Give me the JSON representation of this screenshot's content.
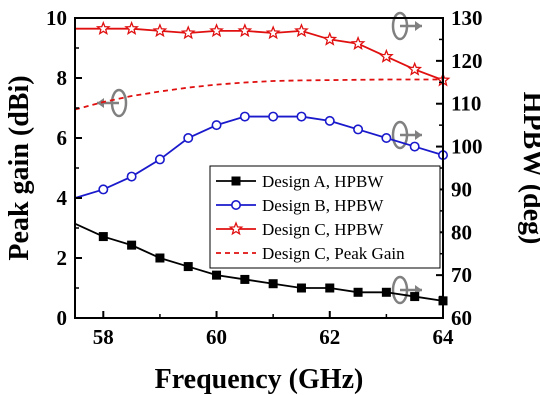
{
  "chart_data": {
    "type": "line",
    "xlabel": "Frequency (GHz)",
    "ylabel_left": "Peak gain (dBi)",
    "ylabel_right": "HPBW (deg)",
    "xlim": [
      57.5,
      64
    ],
    "ylim_left": [
      0,
      10
    ],
    "ylim_right": [
      60,
      130
    ],
    "x_ticks": [
      58,
      60,
      62,
      64
    ],
    "x_tick_labels": [
      "58",
      "60",
      "62",
      "64"
    ],
    "y_left_ticks": [
      0,
      2,
      4,
      6,
      8,
      10
    ],
    "y_left_tick_labels": [
      "0",
      "2",
      "4",
      "6",
      "8",
      "10"
    ],
    "y_right_ticks": [
      60,
      70,
      80,
      90,
      100,
      110,
      120,
      130
    ],
    "y_right_tick_labels": [
      "60",
      "70",
      "80",
      "90",
      "100",
      "110",
      "120",
      "130"
    ],
    "legend_position": "right",
    "grid": false,
    "series": [
      {
        "name": "Design A, HPBW",
        "axis": "right",
        "color": "#000000",
        "marker": "square",
        "line": "solid",
        "x": [
          57.5,
          58,
          58.5,
          59,
          59.5,
          60,
          60.5,
          61,
          61.5,
          62,
          62.5,
          63,
          63.5,
          64
        ],
        "y": [
          82,
          79,
          77,
          74,
          72,
          70,
          69,
          68,
          67,
          67,
          66,
          66,
          65,
          64
        ]
      },
      {
        "name": "Design B, HPBW",
        "axis": "right",
        "color": "#1a1acc",
        "marker": "circle",
        "line": "solid",
        "x": [
          57.5,
          58,
          58.5,
          59,
          59.5,
          60,
          60.5,
          61,
          61.5,
          62,
          62.5,
          63,
          63.5,
          64
        ],
        "y": [
          88,
          90,
          93,
          97,
          102,
          105,
          107,
          107,
          107,
          106,
          104,
          102,
          100,
          98
        ]
      },
      {
        "name": "Design C, HPBW",
        "axis": "right",
        "color": "#e01010",
        "marker": "star",
        "line": "solid",
        "x": [
          57.5,
          58,
          58.5,
          59,
          59.5,
          60,
          60.5,
          61,
          61.5,
          62,
          62.5,
          63,
          63.5,
          64
        ],
        "y": [
          127.5,
          127.5,
          127.5,
          127,
          126.5,
          127,
          127,
          126.5,
          127,
          125,
          124,
          121,
          118,
          115.5
        ]
      },
      {
        "name": "Design C, Peak Gain",
        "axis": "left",
        "color": "#e01010",
        "marker": "none",
        "line": "dashed",
        "x": [
          57.5,
          58,
          58.5,
          59,
          59.5,
          60,
          60.5,
          61,
          61.5,
          62,
          62.5,
          63,
          63.5,
          64
        ],
        "y": [
          6.95,
          7.2,
          7.4,
          7.55,
          7.68,
          7.78,
          7.85,
          7.9,
          7.92,
          7.93,
          7.94,
          7.95,
          7.95,
          7.95
        ]
      }
    ]
  },
  "colors": {
    "axis": "#000000",
    "annotation": "#808080"
  },
  "annotations": [
    {
      "type": "axis-pointer-icon",
      "direction": "left",
      "target_axis": "left"
    },
    {
      "type": "axis-pointer-icon",
      "direction": "right",
      "target_axis": "right"
    },
    {
      "type": "axis-pointer-icon",
      "direction": "right",
      "target_axis": "right"
    },
    {
      "type": "axis-pointer-icon",
      "direction": "right",
      "target_axis": "right"
    },
    {
      "type": "axis-pointer-icon",
      "direction": "right",
      "target_axis": "right"
    },
    {
      "type": "axis-pointer-icon",
      "direction": "right",
      "target_axis": "right"
    }
  ]
}
